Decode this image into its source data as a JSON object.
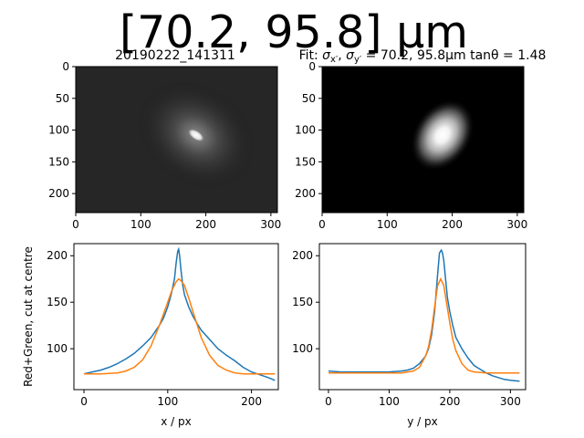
{
  "figure": {
    "suptitle": "[70.2, 95.8] μm"
  },
  "chart_data": [
    {
      "type": "heatmap",
      "title": "20190222_141311",
      "xlabel": "",
      "ylabel": "",
      "xlim": [
        0,
        310
      ],
      "ylim": [
        230,
        0
      ],
      "xticks": [
        0,
        100,
        200,
        300
      ],
      "yticks": [
        0,
        50,
        100,
        150,
        200
      ],
      "colormap": "gray",
      "spot": {
        "cx": 185,
        "cy": 108,
        "sx": 6,
        "sy": 3,
        "halo_sx": 45,
        "halo_sy": 35,
        "tan_theta": 1.48
      }
    },
    {
      "type": "heatmap",
      "title": "Fit: σx′, σy′ = 70.2, 95.8 μm tanθ = 1.48",
      "title_parts": {
        "prefix": "Fit: ",
        "sx": "σ",
        "sx_sub": "x′",
        "sep": ", ",
        "sy": "σ",
        "sy_sub": "y′",
        "values": " = 70.2, 95.8",
        "unit": "μm tanθ = 1.48"
      },
      "xlabel": "",
      "ylabel": "",
      "xlim": [
        0,
        310
      ],
      "ylim": [
        230,
        0
      ],
      "xticks": [
        0,
        100,
        200,
        300
      ],
      "yticks": [
        0,
        50,
        100,
        150,
        200
      ],
      "colormap": "gray",
      "spot": {
        "cx": 185,
        "cy": 108,
        "sx": 22,
        "sy": 30,
        "tan_theta": 1.48
      }
    },
    {
      "type": "line",
      "title": "",
      "xlabel": "x / px",
      "ylabel": "Red+Green, cut at centre",
      "xlim": [
        -12,
        232
      ],
      "ylim": [
        56,
        213
      ],
      "xticks": [
        0,
        100,
        200
      ],
      "yticks": [
        100,
        150,
        200
      ],
      "series": [
        {
          "color": "#1f77b4",
          "x": [
            0,
            10,
            20,
            30,
            40,
            50,
            60,
            70,
            80,
            90,
            95,
            100,
            104,
            108,
            110,
            112,
            113,
            114,
            116,
            118,
            120,
            125,
            130,
            135,
            140,
            150,
            160,
            170,
            180,
            190,
            200,
            210,
            220,
            228
          ],
          "y": [
            73,
            75,
            77,
            80,
            84,
            89,
            95,
            103,
            112,
            125,
            133,
            145,
            158,
            175,
            192,
            205,
            207,
            201,
            183,
            168,
            158,
            145,
            135,
            127,
            120,
            110,
            100,
            93,
            87,
            80,
            75,
            72,
            69,
            66
          ]
        },
        {
          "color": "#ff7f0e",
          "x": [
            0,
            20,
            40,
            50,
            60,
            70,
            80,
            90,
            100,
            105,
            110,
            113,
            116,
            120,
            126,
            130,
            140,
            150,
            160,
            170,
            180,
            190,
            200,
            228
          ],
          "y": [
            73,
            73,
            74,
            76,
            80,
            88,
            103,
            125,
            150,
            163,
            172,
            175,
            173,
            168,
            152,
            140,
            112,
            93,
            82,
            77,
            74,
            73,
            73,
            73
          ]
        }
      ]
    },
    {
      "type": "line",
      "title": "",
      "xlabel": "y / px",
      "ylabel": "",
      "xlim": [
        -15,
        325
      ],
      "ylim": [
        56,
        213
      ],
      "xticks": [
        0,
        100,
        200,
        300
      ],
      "yticks": [
        100,
        150,
        200
      ],
      "series": [
        {
          "color": "#1f77b4",
          "x": [
            0,
            20,
            40,
            60,
            80,
            100,
            120,
            130,
            140,
            150,
            160,
            165,
            170,
            175,
            180,
            183,
            186,
            188,
            190,
            193,
            196,
            200,
            205,
            210,
            220,
            230,
            240,
            250,
            260,
            270,
            280,
            290,
            300,
            315
          ],
          "y": [
            76,
            75,
            75,
            75,
            75,
            75,
            76,
            77,
            79,
            84,
            92,
            100,
            115,
            140,
            180,
            203,
            206,
            203,
            195,
            175,
            155,
            140,
            125,
            112,
            100,
            90,
            82,
            78,
            74,
            71,
            69,
            67,
            66,
            65
          ]
        },
        {
          "color": "#ff7f0e",
          "x": [
            0,
            50,
            100,
            120,
            140,
            150,
            160,
            165,
            170,
            175,
            180,
            185,
            190,
            195,
            200,
            205,
            210,
            220,
            230,
            240,
            260,
            315
          ],
          "y": [
            74,
            74,
            74,
            74,
            76,
            80,
            92,
            102,
            120,
            145,
            168,
            175,
            168,
            148,
            128,
            110,
            98,
            84,
            77,
            75,
            74,
            74
          ]
        }
      ]
    }
  ]
}
